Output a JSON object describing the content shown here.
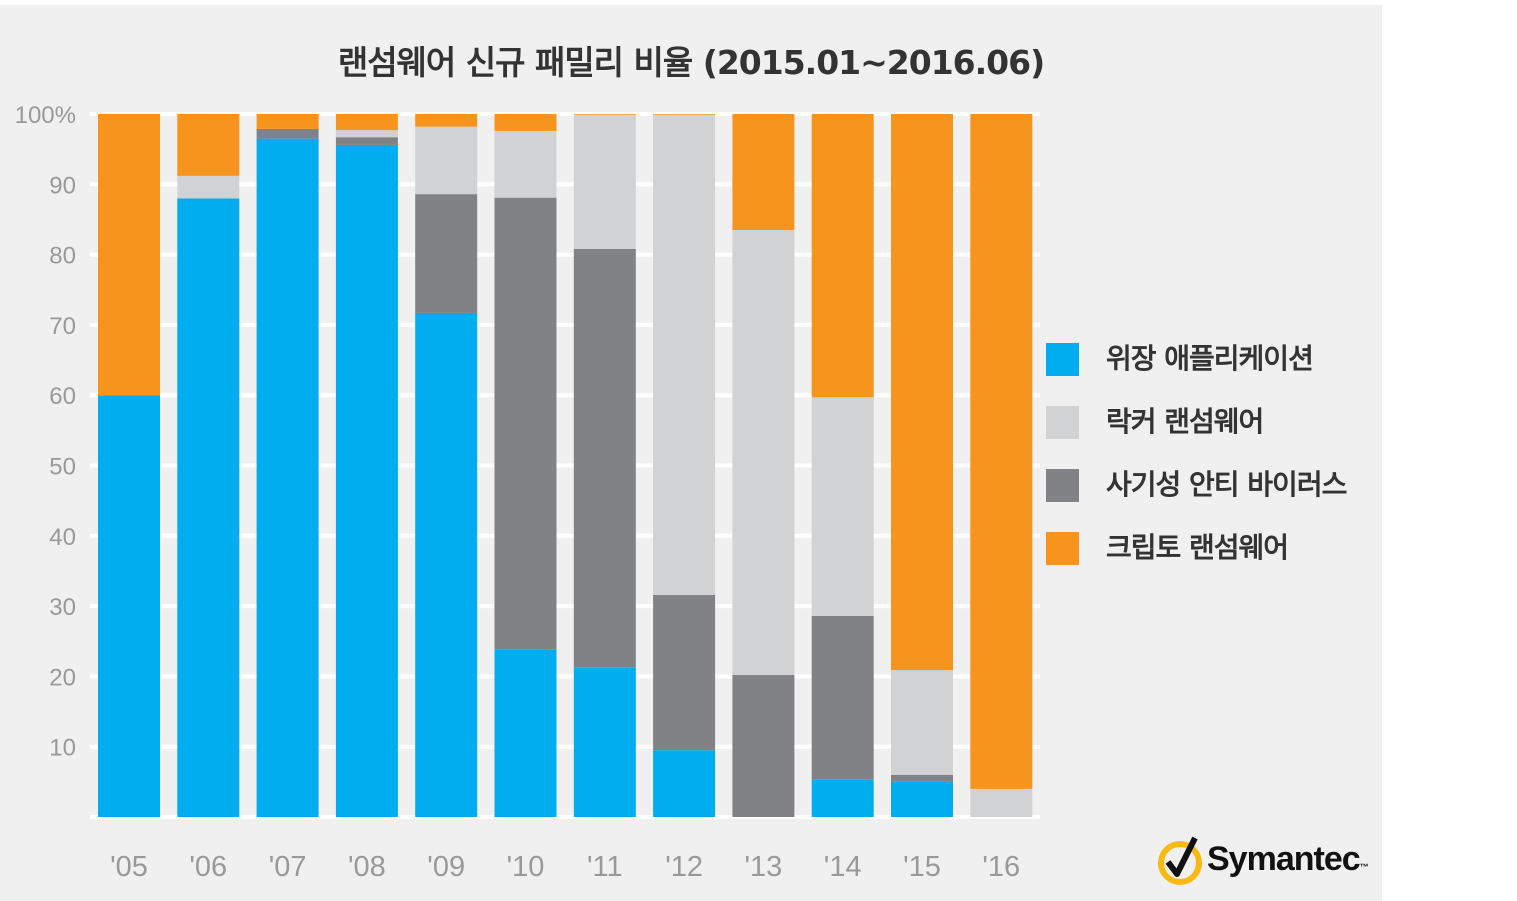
{
  "chart_data": {
    "type": "bar",
    "stacked": true,
    "title": "랜섬웨어 신규 패밀리 비율 (2015.01~2016.06)",
    "categories": [
      "'05",
      "'06",
      "'07",
      "'08",
      "'09",
      "'10",
      "'11",
      "'12",
      "'13",
      "'14",
      "'15",
      "'16"
    ],
    "ylim": [
      0,
      100
    ],
    "yticks": [
      "10",
      "20",
      "30",
      "40",
      "50",
      "60",
      "70",
      "80",
      "90",
      "100%"
    ],
    "grid": true,
    "legend_position": "right",
    "series": [
      {
        "name": "위장 애플리케이션",
        "color": "#00aeef",
        "values": [
          60,
          88,
          96.5,
          95.6,
          71.7,
          23.8,
          21.3,
          9.5,
          0,
          5.3,
          5.0,
          0
        ]
      },
      {
        "name": "사기성 안티 바이러스",
        "color": "#808285",
        "values": [
          0,
          0,
          1.4,
          1.1,
          16.9,
          64.3,
          59.5,
          22.1,
          20.2,
          23.3,
          1.0,
          0
        ]
      },
      {
        "name": "락커 랜섬웨어",
        "color": "#d1d2d4",
        "values": [
          0,
          3.2,
          0,
          1.0,
          9.6,
          9.5,
          19.1,
          68.3,
          63.3,
          31.1,
          14.9,
          4.0
        ]
      },
      {
        "name": "크립토 랜섬웨어",
        "color": "#f7941d",
        "values": [
          40,
          8.8,
          2.1,
          2.3,
          1.8,
          2.4,
          0.1,
          0.1,
          16.5,
          40.3,
          79.1,
          96.0
        ]
      }
    ],
    "legend_order": [
      0,
      2,
      1,
      3
    ]
  },
  "logo": {
    "text": "Symantec",
    "tm": "™"
  }
}
